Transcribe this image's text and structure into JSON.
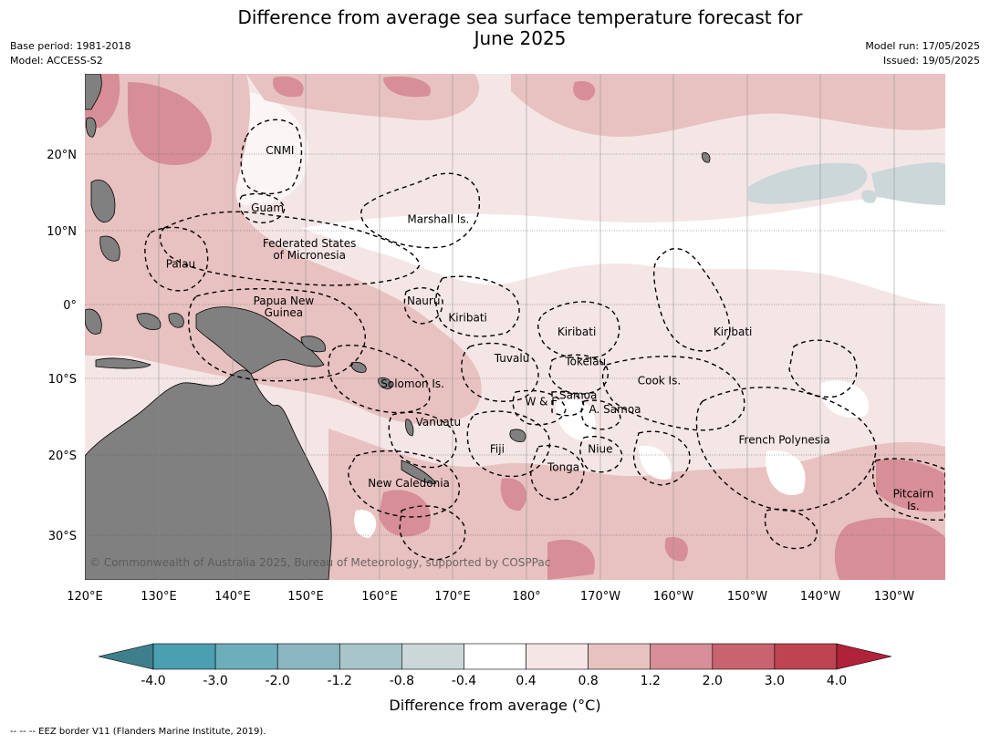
{
  "title_line1": "Difference from average sea surface temperature forecast for",
  "title_line2": "June 2025",
  "base_period": "Base period: 1981-2018",
  "model": "Model: ACCESS-S2",
  "model_run": "Model run: 17/05/2025",
  "issued": "Issued: 19/05/2025",
  "copyright": "© Commonwealth of Australia 2025, Bureau of Meteorology, supported by COSPPac",
  "lon_ticks": [
    "120°E",
    "130°E",
    "140°E",
    "150°E",
    "160°E",
    "170°E",
    "180°",
    "170°W",
    "160°W",
    "150°W",
    "140°W",
    "130°W"
  ],
  "lat_ticks": [
    "20°N",
    "10°N",
    "0°",
    "10°S",
    "20°S",
    "30°S"
  ],
  "eez_labels": [
    {
      "text": "CNMI",
      "lon": 146.5,
      "lat": 20.0
    },
    {
      "text": "Guam",
      "lon": 144.8,
      "lat": 12.5
    },
    {
      "text": "Marshall Is.",
      "lon": 168.0,
      "lat": 11.0
    },
    {
      "text": "Federated States",
      "lon": 150.5,
      "lat": 7.8
    },
    {
      "text": "of Micronesia",
      "lon": 150.5,
      "lat": 6.2
    },
    {
      "text": "Palau",
      "lon": 133.0,
      "lat": 5.0
    },
    {
      "text": "Papua New",
      "lon": 147.0,
      "lat": 0.0
    },
    {
      "text": "Guinea",
      "lon": 147.0,
      "lat": -1.6
    },
    {
      "text": "Nauru",
      "lon": 166.0,
      "lat": 0.0
    },
    {
      "text": "Kiribati",
      "lon": 172.0,
      "lat": -2.3
    },
    {
      "text": "Kiribati",
      "lon": -173.2,
      "lat": -4.2
    },
    {
      "text": "Kiribati",
      "lon": -152.0,
      "lat": -4.2
    },
    {
      "text": "Tuvalu",
      "lon": 178.0,
      "lat": -7.8
    },
    {
      "text": "Tokelau",
      "lon": -172.0,
      "lat": -8.2
    },
    {
      "text": "Cook Is.",
      "lon": -162.0,
      "lat": -10.8
    },
    {
      "text": "Solomon Is.",
      "lon": 164.5,
      "lat": -11.2
    },
    {
      "text": "Samoa",
      "lon": -173.0,
      "lat": -12.7
    },
    {
      "text": "W & F",
      "lon": -178.0,
      "lat": -13.5
    },
    {
      "text": "A. Samoa",
      "lon": -168.0,
      "lat": -14.5
    },
    {
      "text": "Vanuatu",
      "lon": 168.0,
      "lat": -16.2
    },
    {
      "text": "Fiji",
      "lon": 176.0,
      "lat": -19.7
    },
    {
      "text": "Niue",
      "lon": -170.0,
      "lat": -19.7
    },
    {
      "text": "French Polynesia",
      "lon": -145.0,
      "lat": -18.5
    },
    {
      "text": "Tonga",
      "lon": -175.0,
      "lat": -22.0
    },
    {
      "text": "New Caledonia",
      "lon": 164.0,
      "lat": -24.0
    },
    {
      "text": "Pitcairn",
      "lon": -127.5,
      "lat": -25.3
    },
    {
      "text": "Is.",
      "lon": -127.5,
      "lat": -26.8
    }
  ],
  "colorbar": {
    "ticks": [
      "-4.0",
      "-3.0",
      "-2.0",
      "-1.2",
      "-0.8",
      "-0.4",
      "0.4",
      "0.8",
      "1.2",
      "2.0",
      "3.0",
      "4.0"
    ],
    "colors": [
      "#3e7f8c",
      "#4a9fb0",
      "#6daebb",
      "#8ab6c0",
      "#a8c5ca",
      "#cbd7d9",
      "#ffffff",
      "#f5e6e6",
      "#e8c2c0",
      "#d78e96",
      "#c9636f",
      "#bf4452",
      "#b0213a"
    ],
    "label": "Difference from average ($^\\circ$C)",
    "label_display": "Difference from average (°C)"
  },
  "footer": "--  --  -- EEZ border V11 (Flanders Marine Institute, 2019)."
}
